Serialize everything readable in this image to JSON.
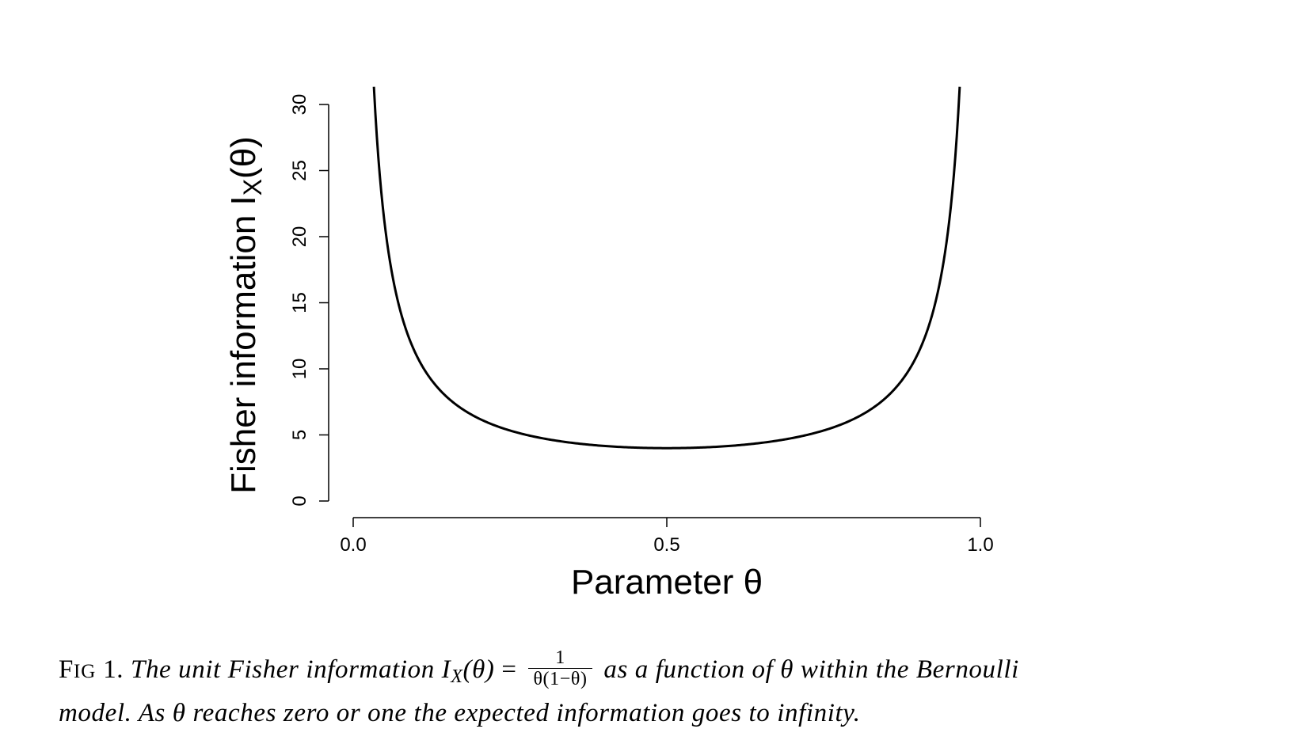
{
  "chart_data": {
    "type": "line",
    "function": "1/(theta*(1-theta))",
    "xlabel_main": "Parameter ",
    "xlabel_symbol": "θ",
    "ylabel_main": "Fisher information I",
    "ylabel_sub": "X",
    "ylabel_tail": "(θ)",
    "xlim": [
      0.0,
      1.0
    ],
    "ylim": [
      0,
      30
    ],
    "x_ticks": [
      0.0,
      0.5,
      1.0
    ],
    "x_tick_labels": [
      "0.0",
      "0.5",
      "1.0"
    ],
    "y_ticks": [
      0,
      5,
      10,
      15,
      20,
      25,
      30
    ],
    "y_tick_labels": [
      "0",
      "5",
      "10",
      "15",
      "20",
      "25",
      "30"
    ],
    "series": [
      {
        "x": [
          0.033,
          0.04,
          0.05,
          0.06,
          0.07,
          0.08,
          0.1,
          0.12,
          0.15,
          0.2,
          0.25,
          0.3,
          0.35,
          0.4,
          0.45,
          0.5,
          0.55,
          0.6,
          0.65,
          0.7,
          0.75,
          0.8,
          0.85,
          0.88,
          0.9,
          0.92,
          0.93,
          0.94,
          0.95,
          0.96,
          0.967
        ],
        "y": [
          31.33,
          26.04,
          21.05,
          17.73,
          15.36,
          13.59,
          11.11,
          9.47,
          7.84,
          6.25,
          5.33,
          4.76,
          4.4,
          4.17,
          4.04,
          4.0,
          4.04,
          4.17,
          4.4,
          4.76,
          5.33,
          6.25,
          7.84,
          9.47,
          11.11,
          13.59,
          15.36,
          17.73,
          21.05,
          26.04,
          31.33
        ]
      }
    ],
    "grid": false,
    "color": "#000000"
  },
  "caption": {
    "fig_F": "F",
    "fig_rest": "IG",
    "fig_num": " 1.",
    "text1": " The unit Fisher information ",
    "I": "I",
    "sub": "X",
    "arg": "(θ)",
    "eq": " = ",
    "frac_num": "1",
    "frac_den": "θ(1−θ)",
    "text2": " as a function of θ within the Bernoulli",
    "line2": "model. As θ reaches zero or one the expected information goes to infinity."
  }
}
